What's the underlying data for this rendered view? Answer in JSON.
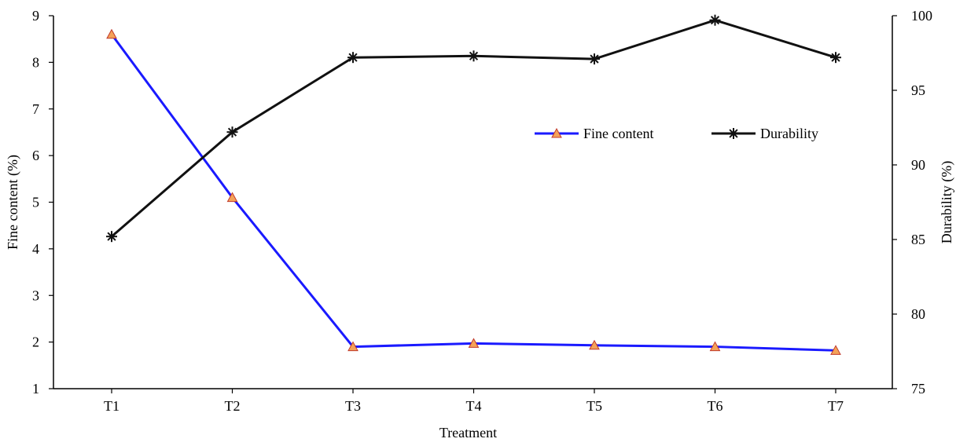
{
  "chart_data": {
    "type": "line",
    "categories": [
      "T1",
      "T2",
      "T3",
      "T4",
      "T5",
      "T6",
      "T7"
    ],
    "xlabel": "Treatment",
    "ylabel_left": "Fine content (%)",
    "ylabel_right": "Durability (%)",
    "ylim_left": [
      1,
      9
    ],
    "ylim_right": [
      75,
      100
    ],
    "yticks_left": [
      1,
      2,
      3,
      4,
      5,
      6,
      7,
      8,
      9
    ],
    "yticks_right": [
      75,
      80,
      85,
      90,
      95,
      100
    ],
    "grid": false,
    "legend_position": "center-right",
    "series": [
      {
        "name": "Fine content",
        "axis": "left",
        "color": "#1a1aff",
        "marker": "triangle",
        "marker_color": "#f4a259",
        "values": [
          8.6,
          5.1,
          1.9,
          1.97,
          1.93,
          1.9,
          1.82
        ]
      },
      {
        "name": "Durability",
        "axis": "right",
        "color": "#111111",
        "marker": "asterisk",
        "values": [
          85.2,
          92.2,
          97.2,
          97.3,
          97.1,
          99.7,
          97.2
        ]
      }
    ]
  }
}
